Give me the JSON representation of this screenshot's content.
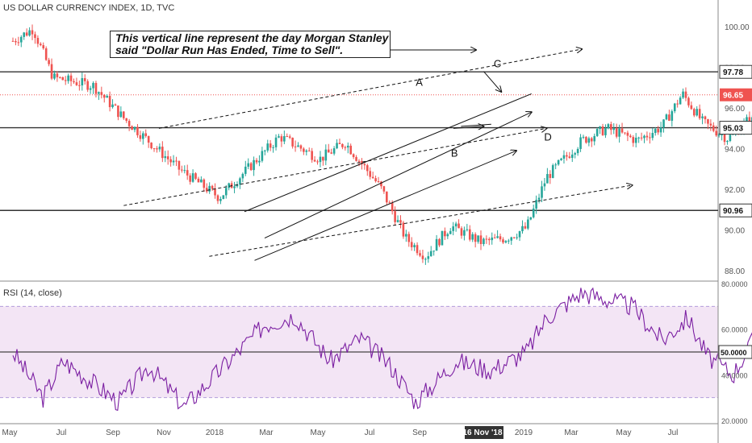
{
  "header": {
    "title": "US DOLLAR CURRENCY INDEX, 1D, TVC"
  },
  "annotation": {
    "line1": "This vertical line represent the day Morgan Stanley",
    "line2": "said \"Dollar Run Has Ended, Time to Sell\"."
  },
  "rsi_panel": {
    "title": "RSI (14, close)"
  },
  "colors": {
    "up": "#26a69a",
    "down": "#ef5350",
    "rsi_line": "#7b1fa2",
    "rsi_band": "#f3e5f5",
    "current_price_line": "#ef5350"
  },
  "chart_data": [
    {
      "type": "candlestick",
      "title": "US DOLLAR CURRENCY INDEX, 1D, TVC",
      "ylim": [
        87.6,
        101
      ],
      "y_ticks": [
        88,
        90,
        92,
        94,
        96,
        98,
        100
      ],
      "y_tick_labels": [
        "88.00",
        "90.00",
        "92.00",
        "94.00",
        "96.00",
        "98.00",
        "100.00"
      ],
      "x_tick_labels": [
        "May",
        "Jul",
        "Sep",
        "Nov",
        "2018",
        "Mar",
        "May",
        "Jul",
        "Sep",
        "16 Nov '18",
        "2019",
        "Mar",
        "May",
        "Jul"
      ],
      "price_labels": [
        {
          "value": 97.78,
          "label": "97.78"
        },
        {
          "value": 96.65,
          "label": "96.65"
        },
        {
          "value": 95.03,
          "label": "95.03"
        },
        {
          "value": 90.96,
          "label": "90.96"
        }
      ],
      "horizontal_levels": [
        97.78,
        95.03,
        90.96
      ],
      "current_price": 96.65,
      "event_date": "16 Nov '18",
      "pivot_labels": [
        "A",
        "B",
        "C",
        "D"
      ],
      "series_keypoints": [
        {
          "month": 0.0,
          "price": 99.3
        },
        {
          "month": 0.4,
          "price": 99.9
        },
        {
          "month": 0.8,
          "price": 97.5
        },
        {
          "month": 1.6,
          "price": 97.1
        },
        {
          "month": 2.2,
          "price": 95.5
        },
        {
          "month": 3.3,
          "price": 93.0
        },
        {
          "month": 4.1,
          "price": 91.6
        },
        {
          "month": 5.3,
          "price": 94.6
        },
        {
          "month": 6.1,
          "price": 93.5
        },
        {
          "month": 6.6,
          "price": 94.3
        },
        {
          "month": 7.3,
          "price": 92.1
        },
        {
          "month": 7.8,
          "price": 89.6
        },
        {
          "month": 8.2,
          "price": 88.7
        },
        {
          "month": 8.7,
          "price": 90.2
        },
        {
          "month": 9.3,
          "price": 89.4
        },
        {
          "month": 9.8,
          "price": 89.6
        },
        {
          "month": 10.2,
          "price": 90.1
        },
        {
          "month": 10.6,
          "price": 92.6
        },
        {
          "month": 11.3,
          "price": 94.4
        },
        {
          "month": 11.8,
          "price": 95.0
        },
        {
          "month": 12.4,
          "price": 94.4
        },
        {
          "month": 12.9,
          "price": 95.1
        },
        {
          "month": 13.3,
          "price": 96.7
        },
        {
          "month": 13.7,
          "price": 95.3
        },
        {
          "month": 14.2,
          "price": 94.5
        },
        {
          "month": 14.6,
          "price": 95.4
        },
        {
          "month": 15.2,
          "price": 95.2
        },
        {
          "month": 15.7,
          "price": 96.7
        },
        {
          "month": 16.0,
          "price": 97.7
        },
        {
          "month": 16.4,
          "price": 96.4
        },
        {
          "month": 16.7,
          "price": 96.65
        }
      ]
    },
    {
      "type": "line",
      "title": "RSI (14, close)",
      "ylim": [
        20,
        80
      ],
      "y_ticks": [
        20,
        40,
        50,
        60,
        80
      ],
      "y_tick_labels": [
        "20.0000",
        "40.0000",
        "50.0000",
        "60.0000",
        "80.0000"
      ],
      "current_value_label": "50.0000",
      "band": [
        30,
        70
      ],
      "midline": 50,
      "rsi_keypoints": [
        {
          "month": 0.0,
          "rsi": 50
        },
        {
          "month": 0.6,
          "rsi": 30
        },
        {
          "month": 1.0,
          "rsi": 46
        },
        {
          "month": 1.5,
          "rsi": 38
        },
        {
          "month": 2.1,
          "rsi": 28
        },
        {
          "month": 2.7,
          "rsi": 44
        },
        {
          "month": 3.4,
          "rsi": 26
        },
        {
          "month": 4.2,
          "rsi": 44
        },
        {
          "month": 5.0,
          "rsi": 62
        },
        {
          "month": 5.6,
          "rsi": 66
        },
        {
          "month": 6.3,
          "rsi": 46
        },
        {
          "month": 6.9,
          "rsi": 56
        },
        {
          "month": 7.5,
          "rsi": 44
        },
        {
          "month": 8.0,
          "rsi": 28
        },
        {
          "month": 8.8,
          "rsi": 46
        },
        {
          "month": 9.5,
          "rsi": 42
        },
        {
          "month": 10.2,
          "rsi": 50
        },
        {
          "month": 10.6,
          "rsi": 65
        },
        {
          "month": 11.3,
          "rsi": 76
        },
        {
          "month": 11.8,
          "rsi": 73
        },
        {
          "month": 12.3,
          "rsi": 70
        },
        {
          "month": 12.9,
          "rsi": 55
        },
        {
          "month": 13.4,
          "rsi": 65
        },
        {
          "month": 13.8,
          "rsi": 48
        },
        {
          "month": 14.3,
          "rsi": 40
        },
        {
          "month": 14.7,
          "rsi": 55
        },
        {
          "month": 15.3,
          "rsi": 55
        },
        {
          "month": 15.8,
          "rsi": 68
        },
        {
          "month": 16.1,
          "rsi": 60
        },
        {
          "month": 16.4,
          "rsi": 55
        },
        {
          "month": 16.7,
          "rsi": 50
        }
      ]
    }
  ]
}
